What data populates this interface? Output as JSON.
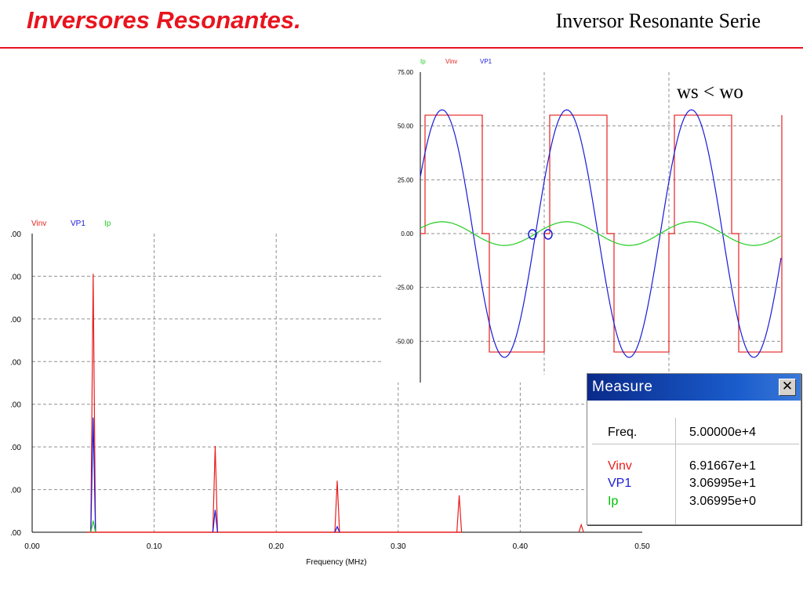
{
  "slide": {
    "title": "Inversores Resonantes.",
    "subtitle": "Inversor Resonante Serie"
  },
  "colors": {
    "red": "#e81e1e",
    "blue": "#1a1ad8",
    "green": "#22cc22",
    "title_red": "#e8141e"
  },
  "chart_data": [
    {
      "type": "line",
      "xlabel": "Frequency (MHz)",
      "xlim": [
        0.0,
        0.5
      ],
      "x_ticks": [
        "0.00",
        "0.10",
        "0.20",
        "0.30",
        "0.40",
        "0.50"
      ],
      "y_ticks": [
        ".00",
        ".00",
        ".00",
        ".00",
        ".00",
        ".00",
        ".00",
        ".00"
      ],
      "legend": [
        "Vinv",
        "VP1",
        "Ip"
      ],
      "grid": true,
      "series": [
        {
          "name": "Vinv",
          "color": "#e81e1e",
          "peaks": [
            [
              0.05,
              69.2
            ],
            [
              0.15,
              23.1
            ],
            [
              0.25,
              13.8
            ],
            [
              0.35,
              9.9
            ],
            [
              0.45,
              2.0
            ]
          ]
        },
        {
          "name": "VP1",
          "color": "#1a1ad8",
          "peaks": [
            [
              0.05,
              30.7
            ],
            [
              0.15,
              6.0
            ],
            [
              0.25,
              1.5
            ]
          ]
        },
        {
          "name": "Ip",
          "color": "#22cc22",
          "peaks": [
            [
              0.05,
              3.1
            ]
          ]
        }
      ]
    },
    {
      "type": "line",
      "ylim": [
        -75,
        75
      ],
      "y_ticks": [
        "75.00",
        "50.00",
        "25.00",
        "0.00",
        "-25.00",
        "-50.00"
      ],
      "legend": [
        "Ip",
        "Vinv",
        "VP1"
      ],
      "grid": true,
      "annotation": "ws < wo",
      "series": [
        {
          "name": "Ip",
          "color": "#22cc22",
          "amplitude": 5.5,
          "cycles": 2.9
        },
        {
          "name": "Vinv",
          "color": "#e81e1e",
          "levels": [
            55,
            0,
            -55
          ],
          "cycles": 2.9
        },
        {
          "name": "VP1",
          "color": "#1a1ad8",
          "amplitude": 57.5,
          "cycles": 2.9
        }
      ]
    }
  ],
  "measure": {
    "title": "Measure",
    "close": "✕",
    "rows": [
      {
        "label": "Freq.",
        "value": "5.00000e+4"
      },
      {
        "label": "Vinv",
        "value": "6.91667e+1"
      },
      {
        "label": "VP1",
        "value": "3.06995e+1"
      },
      {
        "label": "Ip",
        "value": "3.06995e+0"
      }
    ]
  }
}
